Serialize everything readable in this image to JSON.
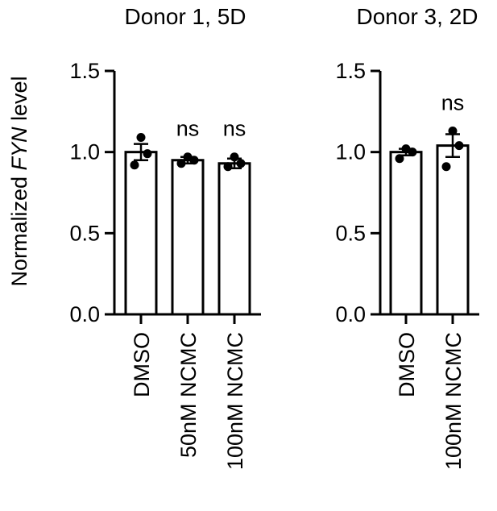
{
  "chart_data": [
    {
      "type": "bar",
      "title": "Donor 1, 5D",
      "ylabel_prefix": "Normalized ",
      "ylabel_italic": "FYN",
      "ylabel_suffix": " level",
      "ylim": [
        0,
        1.5
      ],
      "yticks": [
        0.0,
        0.5,
        1.0,
        1.5
      ],
      "ytick_labels": [
        "0.0",
        "0.5",
        "1.0",
        "1.5"
      ],
      "categories": [
        "DMSO",
        "50nM NCMC",
        "100nM NCMC"
      ],
      "values": [
        1.0,
        0.95,
        0.93
      ],
      "error": [
        0.05,
        0.02,
        0.03
      ],
      "points": [
        [
          0.92,
          0.99,
          1.09
        ],
        [
          0.93,
          0.95,
          0.97
        ],
        [
          0.91,
          0.93,
          0.97
        ]
      ],
      "annotations": [
        "",
        "ns",
        "ns"
      ],
      "grid": false
    },
    {
      "type": "bar",
      "title": "Donor 3, 2D",
      "ylim": [
        0,
        1.5
      ],
      "yticks": [
        0.0,
        0.5,
        1.0,
        1.5
      ],
      "ytick_labels": [
        "0.0",
        "0.5",
        "1.0",
        "1.5"
      ],
      "categories": [
        "DMSO",
        "100nM NCMC"
      ],
      "values": [
        1.0,
        1.04
      ],
      "error": [
        0.02,
        0.07
      ],
      "points": [
        [
          0.96,
          1.0,
          1.02
        ],
        [
          0.91,
          1.04,
          1.13
        ]
      ],
      "annotations": [
        "",
        "ns"
      ],
      "grid": false
    }
  ]
}
